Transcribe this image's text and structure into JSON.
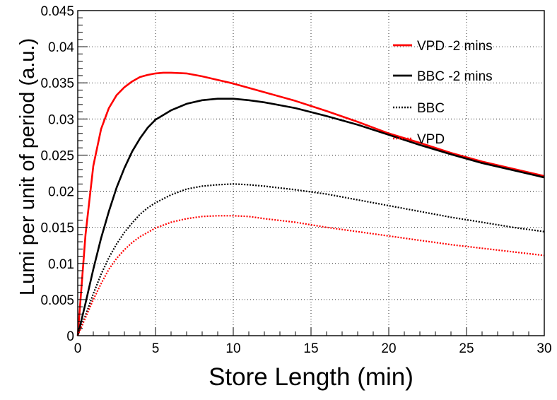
{
  "chart_data": {
    "type": "line",
    "title": "",
    "xlabel": "Store Length (min)",
    "ylabel": "Lumi per unit of period (a.u.)",
    "xlim": [
      0,
      30
    ],
    "ylim": [
      0,
      0.045
    ],
    "xticks": [
      0,
      5,
      10,
      15,
      20,
      25,
      30
    ],
    "xtick_labels": [
      "0",
      "5",
      "10",
      "15",
      "20",
      "25",
      "30"
    ],
    "yticks": [
      0,
      0.005,
      0.01,
      0.015,
      0.02,
      0.025,
      0.03,
      0.035,
      0.04,
      0.045
    ],
    "ytick_labels": [
      "0",
      "0.005",
      "0.01",
      "0.015",
      "0.02",
      "0.025",
      "0.03",
      "0.035",
      "0.04",
      "0.045"
    ],
    "grid": true,
    "legend_position": "top-right",
    "series": [
      {
        "name": "VPD -2 mins",
        "color": "#ff0000",
        "style": "solid",
        "x": [
          0,
          0.5,
          1,
          1.5,
          2,
          2.5,
          3,
          3.5,
          4,
          4.5,
          5,
          5.5,
          6,
          7,
          8,
          9,
          10,
          12,
          14,
          16,
          18,
          20,
          22,
          24,
          26,
          28,
          30
        ],
        "y": [
          0,
          0.014,
          0.0235,
          0.0286,
          0.0315,
          0.0333,
          0.0344,
          0.0352,
          0.0358,
          0.0361,
          0.0363,
          0.0364,
          0.0364,
          0.0363,
          0.0359,
          0.0354,
          0.0349,
          0.0337,
          0.0325,
          0.0311,
          0.0296,
          0.028,
          0.0267,
          0.0253,
          0.0241,
          0.0231,
          0.0221
        ]
      },
      {
        "name": "BBC -2 mins",
        "color": "#000000",
        "style": "solid",
        "x": [
          0,
          0.5,
          1,
          1.5,
          2,
          2.5,
          3,
          3.5,
          4,
          4.5,
          5,
          6,
          7,
          8,
          9,
          10,
          11,
          12,
          14,
          16,
          18,
          20,
          22,
          24,
          26,
          28,
          30
        ],
        "y": [
          0,
          0.0045,
          0.0092,
          0.0135,
          0.0172,
          0.0205,
          0.0232,
          0.0255,
          0.0273,
          0.0288,
          0.0299,
          0.0312,
          0.0321,
          0.0326,
          0.0328,
          0.0328,
          0.0326,
          0.0323,
          0.0315,
          0.0304,
          0.0292,
          0.0278,
          0.0264,
          0.0251,
          0.0239,
          0.0229,
          0.0219
        ]
      },
      {
        "name": "BBC",
        "color": "#000000",
        "style": "dotted",
        "x": [
          0,
          0.5,
          1,
          1.5,
          2,
          2.5,
          3,
          3.5,
          4,
          4.5,
          5,
          6,
          7,
          8,
          9,
          10,
          11,
          12,
          14,
          16,
          18,
          20,
          22,
          24,
          26,
          28,
          30
        ],
        "y": [
          0,
          0.0028,
          0.0058,
          0.0085,
          0.0108,
          0.0127,
          0.0143,
          0.0156,
          0.0168,
          0.0177,
          0.0184,
          0.0195,
          0.0203,
          0.0207,
          0.0209,
          0.021,
          0.0209,
          0.0207,
          0.0202,
          0.0196,
          0.0188,
          0.018,
          0.0172,
          0.0164,
          0.0157,
          0.015,
          0.0144
        ]
      },
      {
        "name": "VPD",
        "color": "#ff0000",
        "style": "dotted",
        "x": [
          0,
          0.5,
          1,
          1.5,
          2,
          2.5,
          3,
          3.5,
          4,
          4.5,
          5,
          6,
          7,
          8,
          9,
          10,
          11,
          12,
          14,
          16,
          18,
          20,
          22,
          24,
          26,
          28,
          30
        ],
        "y": [
          0,
          0.0025,
          0.005,
          0.0072,
          0.0092,
          0.0107,
          0.0119,
          0.0129,
          0.0137,
          0.0143,
          0.0149,
          0.0157,
          0.0162,
          0.0165,
          0.0166,
          0.0166,
          0.0165,
          0.0162,
          0.0157,
          0.015,
          0.0144,
          0.0138,
          0.0132,
          0.0126,
          0.0121,
          0.0116,
          0.0111
        ]
      }
    ]
  }
}
